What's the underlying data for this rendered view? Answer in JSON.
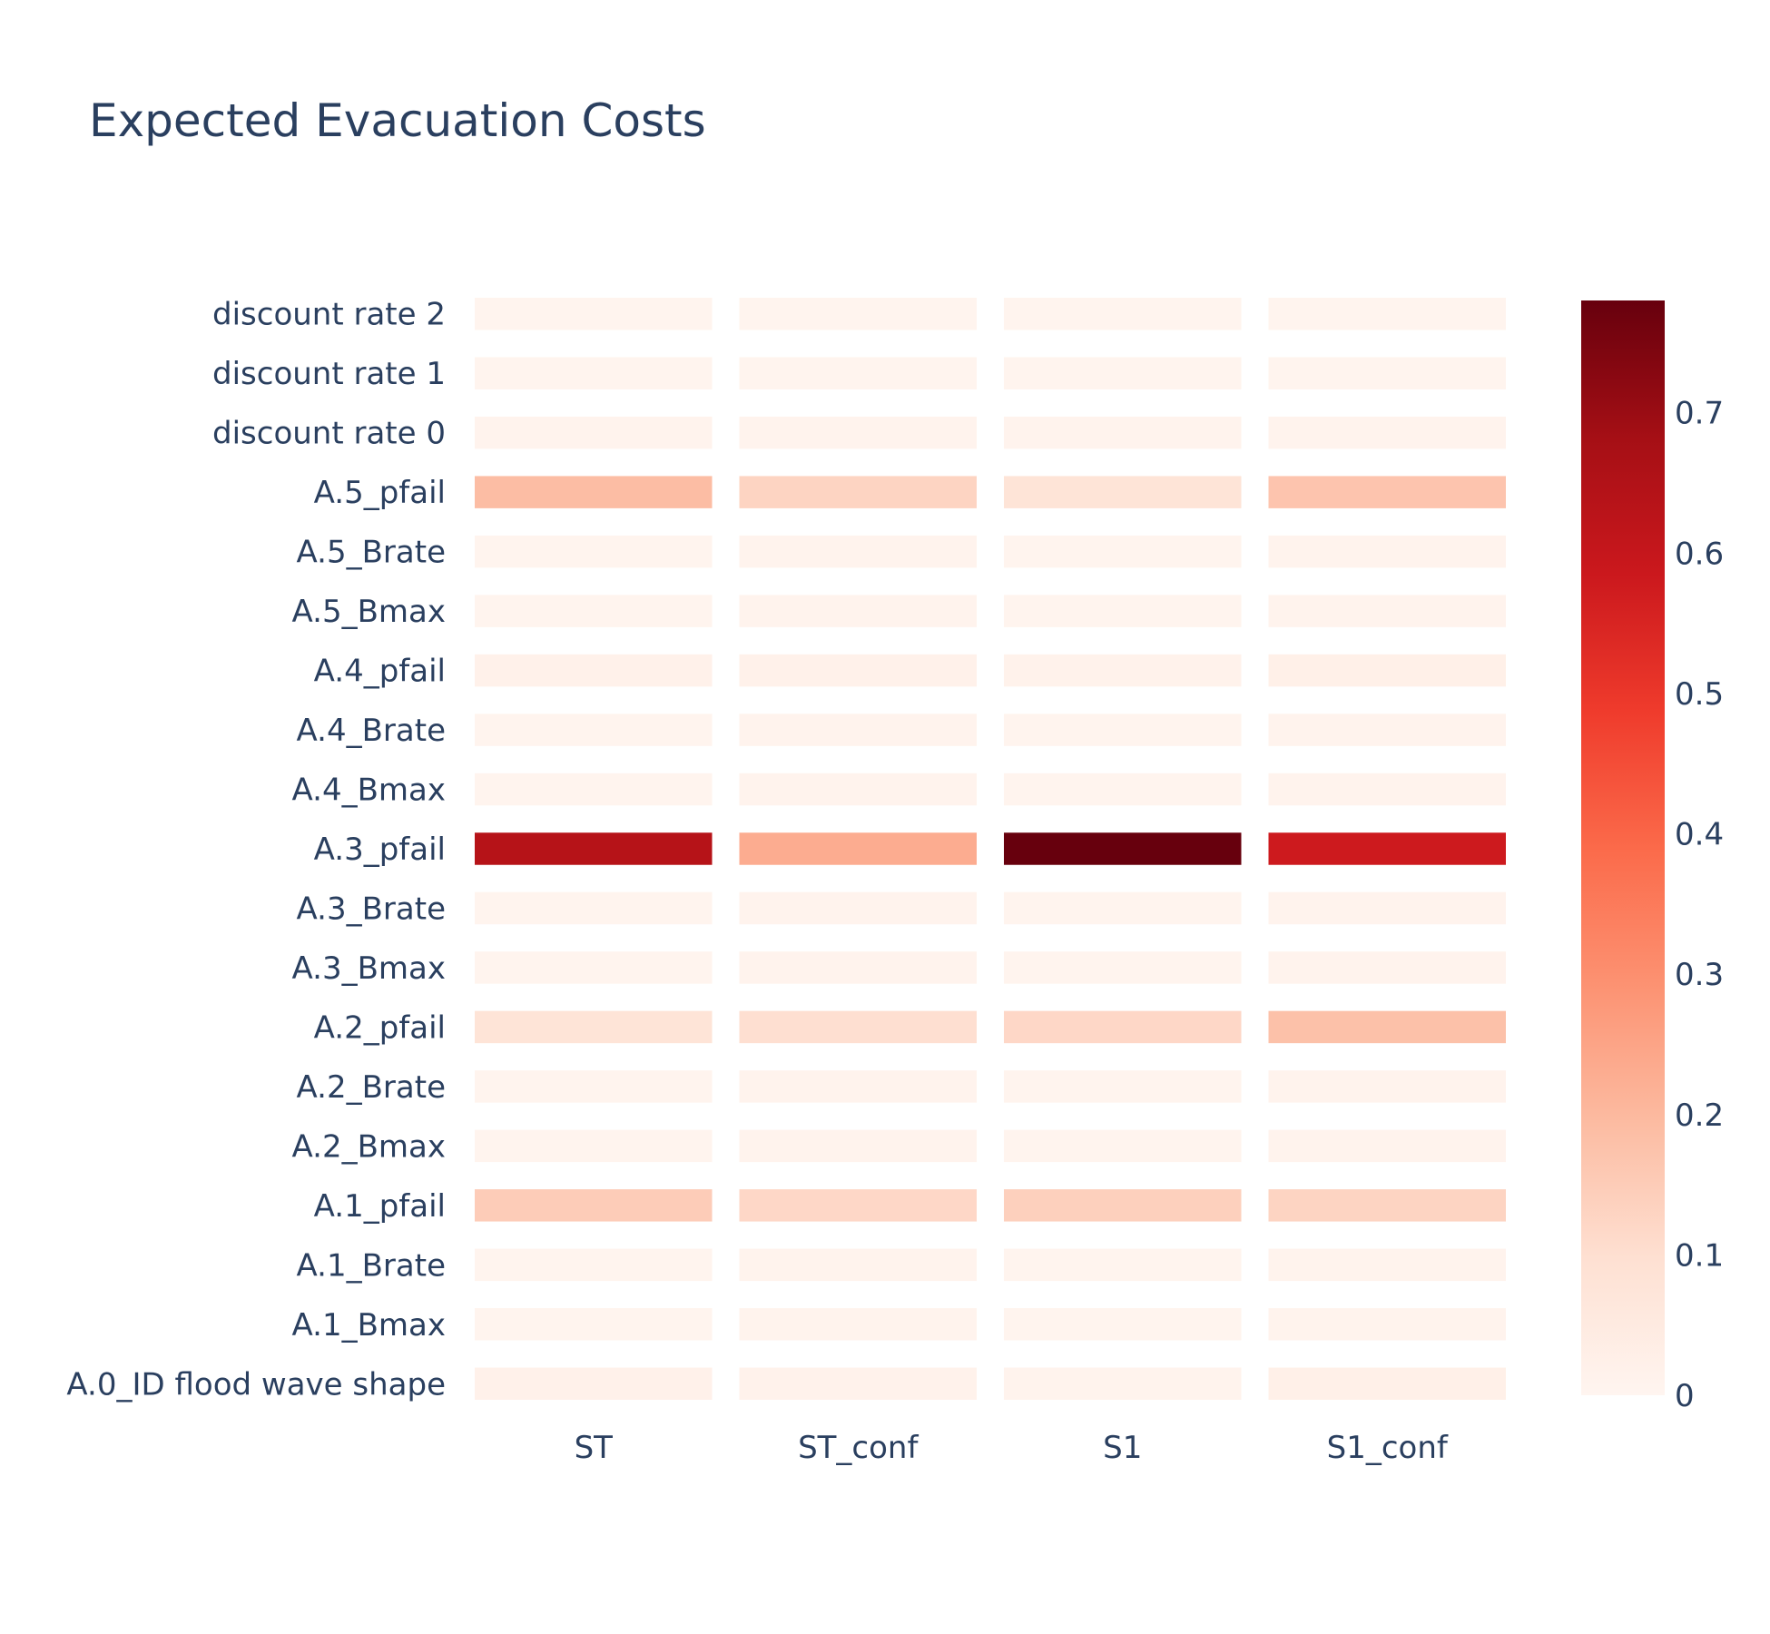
{
  "chart_data": {
    "type": "heatmap",
    "title": "Expected Evacuation Costs",
    "x_categories": [
      "ST",
      "ST_conf",
      "S1",
      "S1_conf"
    ],
    "y_categories": [
      "A.0_ID flood wave shape",
      "A.1_Bmax",
      "A.1_Brate",
      "A.1_pfail",
      "A.2_Bmax",
      "A.2_Brate",
      "A.2_pfail",
      "A.3_Bmax",
      "A.3_Brate",
      "A.3_pfail",
      "A.4_Bmax",
      "A.4_Brate",
      "A.4_pfail",
      "A.5_Bmax",
      "A.5_Brate",
      "A.5_pfail",
      "discount rate 0",
      "discount rate 1",
      "discount rate 2"
    ],
    "z": [
      [
        0.02,
        0.015,
        0.01,
        0.025
      ],
      [
        0.005,
        0.01,
        0.005,
        0.01
      ],
      [
        0.005,
        0.01,
        0.005,
        0.01
      ],
      [
        0.15,
        0.12,
        0.14,
        0.13
      ],
      [
        0.005,
        0.01,
        0.005,
        0.01
      ],
      [
        0.005,
        0.01,
        0.005,
        0.01
      ],
      [
        0.08,
        0.1,
        0.12,
        0.18
      ],
      [
        0.005,
        0.01,
        0.005,
        0.01
      ],
      [
        0.005,
        0.01,
        0.005,
        0.01
      ],
      [
        0.64,
        0.23,
        0.78,
        0.58
      ],
      [
        0.005,
        0.01,
        0.005,
        0.01
      ],
      [
        0.005,
        0.01,
        0.005,
        0.01
      ],
      [
        0.02,
        0.02,
        0.015,
        0.025
      ],
      [
        0.005,
        0.01,
        0.005,
        0.01
      ],
      [
        0.005,
        0.01,
        0.005,
        0.01
      ],
      [
        0.19,
        0.13,
        0.08,
        0.17
      ],
      [
        0.01,
        0.01,
        0.01,
        0.01
      ],
      [
        0.005,
        0.005,
        0.005,
        0.005
      ],
      [
        0.005,
        0.005,
        0.005,
        0.005
      ]
    ],
    "zlim": [
      0,
      0.78
    ],
    "colorscale": "Reds",
    "colorbar_ticks": [
      0,
      0.1,
      0.2,
      0.3,
      0.4,
      0.5,
      0.6,
      0.7
    ],
    "colorbar_tick_labels": [
      "0",
      "0.1",
      "0.2",
      "0.3",
      "0.4",
      "0.5",
      "0.6",
      "0.7"
    ],
    "xlabel": "",
    "ylabel": ""
  }
}
